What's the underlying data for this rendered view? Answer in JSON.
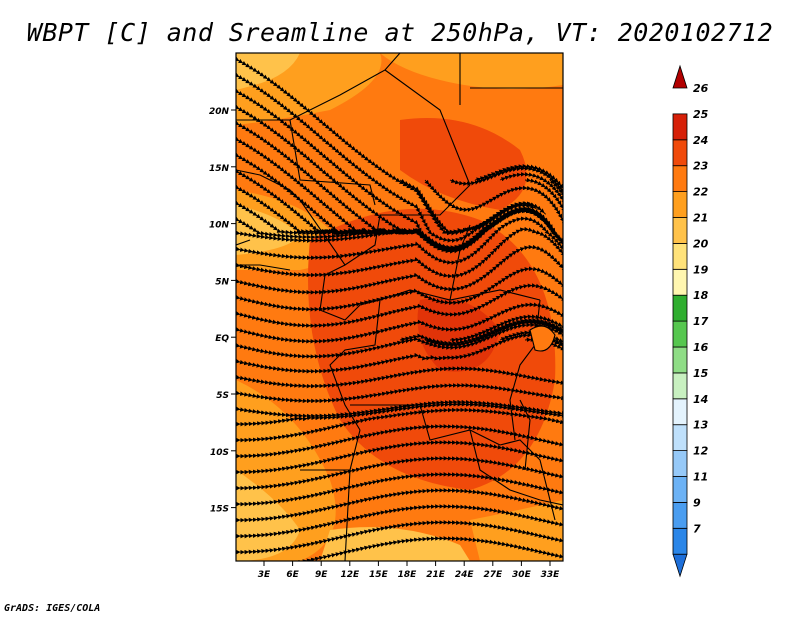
{
  "title": "WBPT [C] and Sreamline at 250hPa, VT: 2020102712",
  "footer": "GrADS: IGES/COLA",
  "map": {
    "lat_labels": [
      "20N",
      "15N",
      "10N",
      "5N",
      "EQ",
      "5S",
      "10S",
      "15S"
    ],
    "lon_labels": [
      "3E",
      "6E",
      "9E",
      "12E",
      "15E",
      "18E",
      "21E",
      "24E",
      "27E",
      "30E",
      "33E"
    ]
  },
  "colorbar": {
    "labels": [
      "7",
      "9",
      "11",
      "12",
      "13",
      "14",
      "15",
      "16",
      "17",
      "18",
      "19",
      "20",
      "21",
      "22",
      "23",
      "24",
      "25",
      "26"
    ],
    "colors": [
      "#1e6fd9",
      "#2b86e8",
      "#4a9df0",
      "#6cb2f5",
      "#96c9f8",
      "#bfe0fb",
      "#e4f3fd",
      "#c8f0c0",
      "#8fdd86",
      "#56c74f",
      "#2fae2f",
      "#fff6b0",
      "#ffe27a",
      "#ffc24a",
      "#ff9f1e",
      "#ff7a10",
      "#f04a0a",
      "#d62008",
      "#b20000"
    ]
  }
}
